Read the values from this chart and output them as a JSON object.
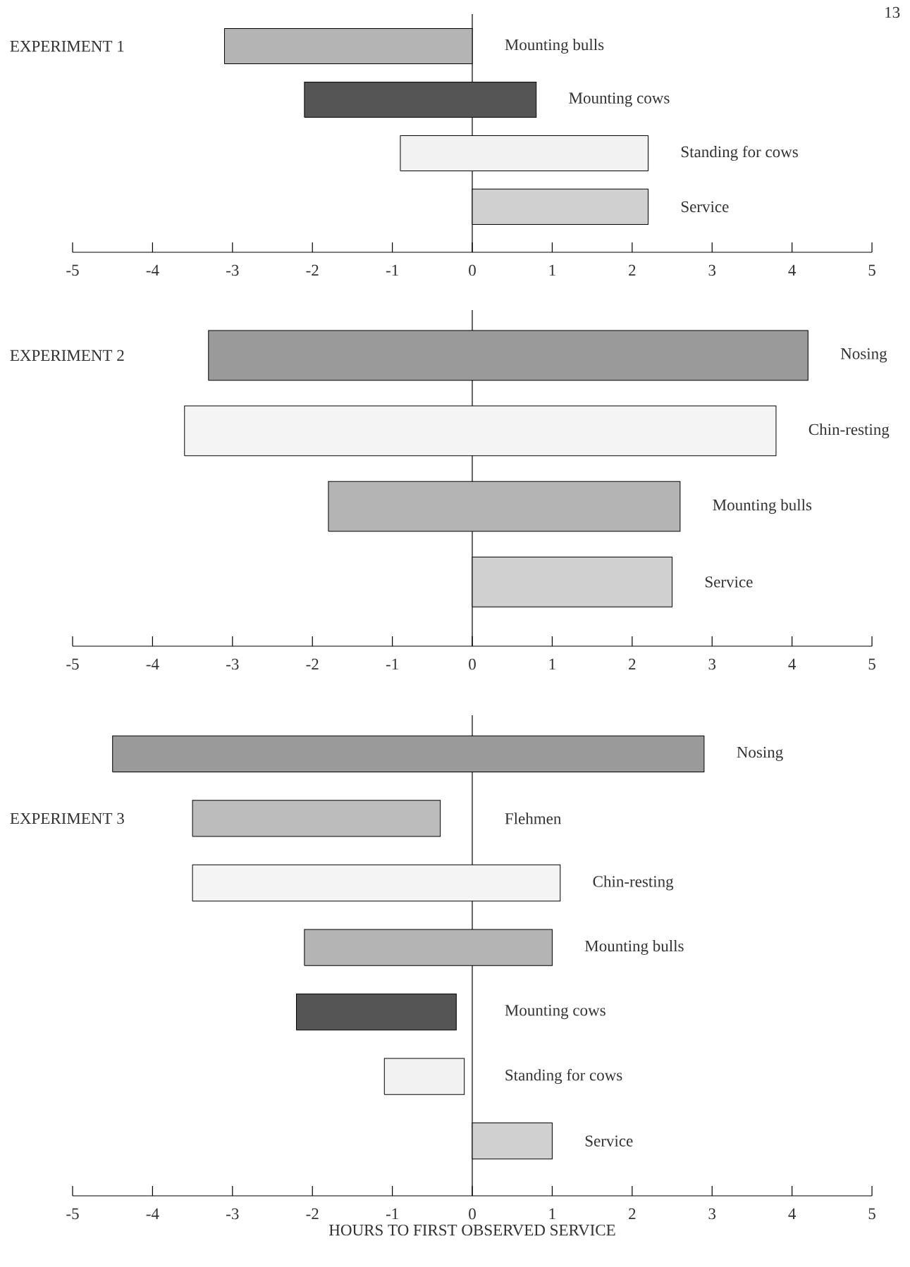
{
  "chart_data": [
    {
      "type": "bar",
      "orientation": "horizontal",
      "title": "EXPERIMENT 1",
      "categories": [
        "Mounting bulls",
        "Mounting cows",
        "Standing for cows",
        "Service"
      ],
      "base": [
        -3.1,
        -2.1,
        -0.9,
        0
      ],
      "values": [
        3.1,
        2.9,
        3.1,
        2.2
      ],
      "colors": [
        "#b4b4b4",
        "#555555",
        "#f2f2f2",
        "#d0d0d0"
      ],
      "xlim": [
        -5,
        5
      ],
      "xticks": [
        -5,
        -4,
        -3,
        -2,
        -1,
        0,
        1,
        2,
        3,
        4,
        5
      ],
      "annotations": [
        "13"
      ]
    },
    {
      "type": "bar",
      "orientation": "horizontal",
      "title": "EXPERIMENT 2",
      "categories": [
        "Nosing",
        "Chin-resting",
        "Mounting bulls",
        "Service"
      ],
      "base": [
        -3.3,
        -3.6,
        -1.8,
        0
      ],
      "values": [
        7.5,
        7.4,
        4.4,
        2.5
      ],
      "colors": [
        "#9a9a9a",
        "#f4f4f4",
        "#b4b4b4",
        "#d0d0d0"
      ],
      "xlim": [
        -5,
        5
      ],
      "xticks": [
        -5,
        -4,
        -3,
        -2,
        -1,
        0,
        1,
        2,
        3,
        4,
        5
      ]
    },
    {
      "type": "bar",
      "orientation": "horizontal",
      "title": "EXPERIMENT 3",
      "xlabel": "HOURS TO FIRST OBSERVED SERVICE",
      "categories": [
        "Nosing",
        "Flehmen",
        "Chin-resting",
        "Mounting bulls",
        "Mounting cows",
        "Standing for cows",
        "Service"
      ],
      "base": [
        -4.5,
        -3.5,
        -3.5,
        -2.1,
        -2.2,
        -1.1,
        0
      ],
      "values": [
        7.4,
        3.1,
        4.6,
        3.1,
        2.0,
        1.0,
        1.0
      ],
      "colors": [
        "#9a9a9a",
        "#bcbcbc",
        "#f4f4f4",
        "#b4b4b4",
        "#555555",
        "#f2f2f2",
        "#d0d0d0"
      ],
      "xlim": [
        -5,
        5
      ],
      "xticks": [
        -5,
        -4,
        -3,
        -2,
        -1,
        0,
        1,
        2,
        3,
        4,
        5
      ]
    }
  ]
}
